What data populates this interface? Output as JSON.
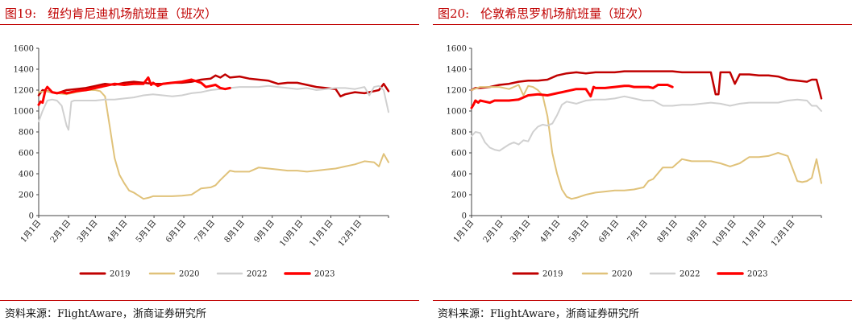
{
  "charts": [
    {
      "figure_no": "图19:",
      "title": "纽约肯尼迪机场航班量（班次）",
      "source": "资料来源：FlightAware，浙商证券研究所",
      "chart_data": {
        "type": "line",
        "title": "纽约肯尼迪机场航班量（班次）",
        "x_unit": "day of year",
        "x_ticks": [
          "1月1日",
          "2月1日",
          "3月1日",
          "4月1日",
          "5月1日",
          "6月1日",
          "7月1日",
          "8月1日",
          "9月1日",
          "10月1日",
          "11月1日",
          "12月1日"
        ],
        "x_tick_days": [
          1,
          32,
          60,
          91,
          121,
          152,
          182,
          213,
          244,
          274,
          305,
          335
        ],
        "xlim": [
          1,
          365
        ],
        "ylim": [
          0,
          1600
        ],
        "yticks": [
          0,
          200,
          400,
          600,
          800,
          1000,
          1200,
          1400,
          1600
        ],
        "legend_position": "bottom",
        "grid": false,
        "series": [
          {
            "name": "2019",
            "color": "#c00000",
            "width": 2.5,
            "x": [
              1,
              5,
              10,
              15,
              20,
              30,
              40,
              50,
              60,
              70,
              80,
              90,
              100,
              110,
              120,
              130,
              140,
              150,
              160,
              170,
              180,
              185,
              190,
              195,
              200,
              210,
              220,
              230,
              240,
              250,
              260,
              270,
              280,
              290,
              300,
              310,
              315,
              320,
              330,
              340,
              350,
              355,
              360,
              365
            ],
            "y": [
              1150,
              1200,
              1190,
              1180,
              1170,
              1200,
              1210,
              1220,
              1240,
              1260,
              1250,
              1270,
              1280,
              1270,
              1260,
              1260,
              1270,
              1270,
              1280,
              1300,
              1310,
              1340,
              1320,
              1350,
              1320,
              1330,
              1310,
              1300,
              1290,
              1260,
              1270,
              1270,
              1250,
              1230,
              1220,
              1210,
              1140,
              1160,
              1180,
              1170,
              1190,
              1200,
              1260,
              1190
            ]
          },
          {
            "name": "2020",
            "color": "#e0c27a",
            "width": 2,
            "x": [
              1,
              10,
              20,
              30,
              40,
              50,
              60,
              65,
              70,
              75,
              80,
              85,
              90,
              95,
              100,
              105,
              110,
              115,
              120,
              130,
              140,
              150,
              160,
              170,
              180,
              185,
              190,
              200,
              205,
              210,
              220,
              230,
              240,
              250,
              260,
              270,
              280,
              290,
              300,
              310,
              320,
              330,
              340,
              350,
              355,
              360,
              365
            ],
            "y": [
              1180,
              1190,
              1170,
              1160,
              1180,
              1200,
              1200,
              1190,
              1140,
              850,
              550,
              390,
              310,
              240,
              220,
              190,
              160,
              170,
              185,
              185,
              185,
              190,
              200,
              260,
              270,
              290,
              340,
              430,
              420,
              420,
              420,
              460,
              450,
              440,
              430,
              430,
              420,
              430,
              440,
              450,
              470,
              490,
              520,
              510,
              470,
              590,
              510
            ]
          },
          {
            "name": "2022",
            "color": "#d0d0d0",
            "width": 2,
            "x": [
              1,
              5,
              10,
              15,
              20,
              25,
              30,
              32,
              35,
              38,
              40,
              45,
              50,
              60,
              70,
              80,
              90,
              100,
              110,
              120,
              130,
              140,
              150,
              160,
              170,
              180,
              190,
              200,
              210,
              220,
              230,
              240,
              250,
              260,
              270,
              280,
              290,
              300,
              310,
              320,
              330,
              340,
              345,
              350,
              355,
              360,
              365
            ],
            "y": [
              900,
              1000,
              1100,
              1110,
              1100,
              1050,
              860,
              820,
              1090,
              1100,
              1100,
              1100,
              1100,
              1100,
              1110,
              1110,
              1120,
              1130,
              1150,
              1160,
              1150,
              1140,
              1150,
              1170,
              1180,
              1200,
              1210,
              1220,
              1230,
              1230,
              1230,
              1240,
              1230,
              1220,
              1210,
              1220,
              1200,
              1210,
              1220,
              1220,
              1210,
              1230,
              1150,
              1230,
              1240,
              1200,
              990
            ]
          },
          {
            "name": "2023",
            "color": "#ff0000",
            "width": 3,
            "x": [
              1,
              3,
              5,
              8,
              10,
              15,
              20,
              25,
              30,
              40,
              50,
              60,
              70,
              80,
              90,
              100,
              110,
              115,
              118,
              120,
              125,
              130,
              140,
              150,
              160,
              170,
              175,
              180,
              185,
              190,
              195,
              200
            ],
            "y": [
              1060,
              1090,
              1080,
              1200,
              1230,
              1180,
              1170,
              1180,
              1170,
              1190,
              1200,
              1220,
              1240,
              1260,
              1250,
              1260,
              1260,
              1320,
              1250,
              1270,
              1240,
              1260,
              1270,
              1280,
              1300,
              1270,
              1230,
              1240,
              1250,
              1220,
              1210,
              1220
            ]
          }
        ]
      }
    },
    {
      "figure_no": "图20:",
      "title": "伦敦希思罗机场航班量（班次）",
      "source": "资料来源：FlightAware，浙商证券研究所",
      "chart_data": {
        "type": "line",
        "title": "伦敦希思罗机场航班量（班次）",
        "x_unit": "day of year",
        "x_ticks": [
          "1月1日",
          "2月1日",
          "3月1日",
          "4月1日",
          "5月1日",
          "6月1日",
          "7月1日",
          "8月1日",
          "9月1日",
          "10月1日",
          "11月1日",
          "12月1日"
        ],
        "x_tick_days": [
          1,
          32,
          60,
          91,
          121,
          152,
          182,
          213,
          244,
          274,
          305,
          335
        ],
        "xlim": [
          1,
          365
        ],
        "ylim": [
          0,
          1600
        ],
        "yticks": [
          0,
          200,
          400,
          600,
          800,
          1000,
          1200,
          1400,
          1600
        ],
        "legend_position": "bottom",
        "grid": false,
        "series": [
          {
            "name": "2019",
            "color": "#c00000",
            "width": 2.5,
            "x": [
              1,
              5,
              10,
              20,
              30,
              40,
              50,
              60,
              70,
              80,
              90,
              100,
              110,
              120,
              130,
              140,
              150,
              160,
              170,
              180,
              190,
              200,
              210,
              220,
              230,
              240,
              250,
              255,
              258,
              260,
              265,
              270,
              275,
              280,
              290,
              300,
              310,
              320,
              330,
              340,
              350,
              355,
              360,
              365
            ],
            "y": [
              1200,
              1220,
              1220,
              1230,
              1250,
              1260,
              1280,
              1290,
              1290,
              1300,
              1340,
              1360,
              1370,
              1360,
              1370,
              1370,
              1370,
              1380,
              1380,
              1380,
              1380,
              1380,
              1380,
              1370,
              1370,
              1370,
              1370,
              1160,
              1160,
              1370,
              1370,
              1370,
              1260,
              1350,
              1350,
              1340,
              1340,
              1330,
              1300,
              1290,
              1280,
              1300,
              1300,
              1120
            ]
          },
          {
            "name": "2020",
            "color": "#e0c27a",
            "width": 2,
            "x": [
              1,
              10,
              20,
              30,
              40,
              50,
              55,
              60,
              65,
              70,
              75,
              80,
              85,
              90,
              95,
              100,
              105,
              110,
              120,
              130,
              140,
              150,
              160,
              170,
              180,
              185,
              190,
              200,
              210,
              220,
              230,
              240,
              250,
              260,
              270,
              280,
              290,
              300,
              310,
              320,
              330,
              340,
              345,
              350,
              355,
              360,
              365
            ],
            "y": [
              1200,
              1230,
              1230,
              1230,
              1210,
              1250,
              1150,
              1240,
              1230,
              1200,
              1150,
              950,
              600,
              400,
              250,
              180,
              160,
              170,
              200,
              220,
              230,
              240,
              240,
              250,
              270,
              330,
              350,
              460,
              460,
              540,
              520,
              520,
              520,
              500,
              470,
              500,
              560,
              560,
              570,
              600,
              570,
              330,
              320,
              330,
              360,
              540,
              310
            ]
          },
          {
            "name": "2022",
            "color": "#d0d0d0",
            "width": 2,
            "x": [
              1,
              5,
              10,
              15,
              20,
              25,
              30,
              35,
              40,
              45,
              50,
              55,
              60,
              65,
              70,
              75,
              80,
              85,
              90,
              95,
              100,
              110,
              120,
              130,
              140,
              150,
              160,
              170,
              180,
              190,
              200,
              210,
              220,
              230,
              240,
              250,
              260,
              270,
              280,
              290,
              300,
              310,
              320,
              330,
              340,
              350,
              355,
              360,
              365
            ],
            "y": [
              760,
              800,
              790,
              700,
              650,
              630,
              620,
              650,
              680,
              700,
              680,
              720,
              710,
              800,
              850,
              870,
              860,
              880,
              960,
              1060,
              1090,
              1070,
              1100,
              1110,
              1110,
              1120,
              1140,
              1120,
              1100,
              1100,
              1050,
              1050,
              1060,
              1060,
              1070,
              1080,
              1070,
              1050,
              1070,
              1080,
              1080,
              1080,
              1080,
              1100,
              1110,
              1100,
              1050,
              1050,
              1000
            ]
          },
          {
            "name": "2023",
            "color": "#ff0000",
            "width": 3,
            "x": [
              1,
              3,
              5,
              8,
              10,
              15,
              20,
              25,
              30,
              40,
              50,
              60,
              70,
              80,
              90,
              95,
              100,
              110,
              120,
              125,
              128,
              130,
              140,
              150,
              160,
              165,
              170,
              180,
              185,
              190,
              195,
              200,
              205,
              210
            ],
            "y": [
              1030,
              1060,
              1100,
              1080,
              1100,
              1090,
              1080,
              1100,
              1100,
              1100,
              1110,
              1150,
              1160,
              1150,
              1170,
              1180,
              1190,
              1210,
              1210,
              1140,
              1230,
              1220,
              1220,
              1230,
              1240,
              1240,
              1230,
              1230,
              1230,
              1220,
              1250,
              1250,
              1250,
              1230
            ]
          }
        ]
      }
    }
  ]
}
